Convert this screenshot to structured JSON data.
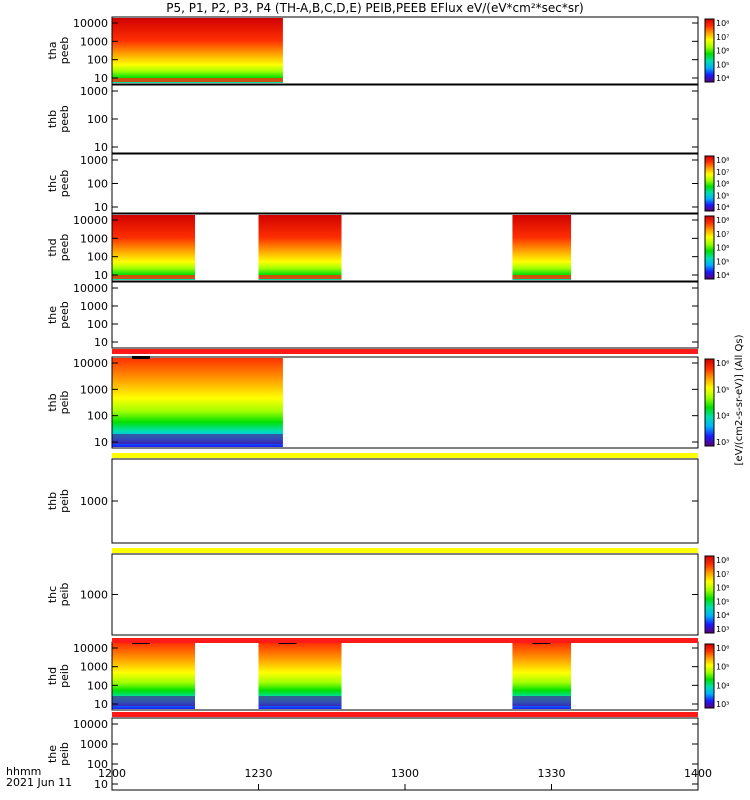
{
  "title": "P5, P1, P2, P3, P4 (TH-A,B,C,D,E) PEIB,PEEB EFlux eV/(eV*cm²*sec*sr)",
  "footer": {
    "time_label": "hhmm",
    "date_label": "2021 Jun 11"
  },
  "colors": {
    "spectrum": [
      "#5a007a",
      "#1a1aff",
      "#00b0ff",
      "#00e0b0",
      "#00e000",
      "#a0ff00",
      "#ffff00",
      "#ffa000",
      "#ff3000",
      "#d00000"
    ],
    "gap_bar": "#ff1a1a",
    "gap_bar_yellow": "#ffff00"
  },
  "chart_data": {
    "type": "heatmap",
    "x_axis": {
      "ticks": [
        "1200",
        "1230",
        "1300",
        "1330",
        "1400"
      ],
      "range": [
        "12:00",
        "14:00"
      ]
    },
    "panels": [
      {
        "probe": "tha",
        "instrument": "peeb",
        "yticks": [
          "10",
          "100",
          "1000",
          "10000"
        ],
        "data_intervals": [
          [
            "12:00",
            "12:35"
          ]
        ],
        "colorbar": [
          "10⁸",
          "10⁷",
          "10⁶",
          "10⁵",
          "10⁴"
        ],
        "colorbar_label": "[eV/(cm2-s-sr-eV)] (All Qs)"
      },
      {
        "probe": "thb",
        "instrument": "peeb",
        "yticks": [
          "10",
          "100",
          "1000"
        ],
        "data_intervals": []
      },
      {
        "probe": "thc",
        "instrument": "peeb",
        "yticks": [
          "10",
          "100",
          "1000"
        ],
        "data_intervals": [],
        "colorbar": [
          "10⁸",
          "10⁷",
          "10⁶",
          "10⁵",
          "10⁴"
        ]
      },
      {
        "probe": "thd",
        "instrument": "peeb",
        "yticks": [
          "10",
          "100",
          "1000",
          "10000"
        ],
        "data_intervals": [
          [
            "12:00",
            "12:17"
          ],
          [
            "12:30",
            "12:47"
          ],
          [
            "13:22",
            "13:34"
          ]
        ],
        "colorbar": [
          "10⁸",
          "10⁷",
          "10⁶",
          "10⁵",
          "10⁴"
        ]
      },
      {
        "probe": "the",
        "instrument": "peeb",
        "yticks": [
          "10",
          "100",
          "1000",
          "10000"
        ],
        "data_intervals": []
      },
      {
        "probe": "thb",
        "instrument": "peib",
        "yticks": [
          "10",
          "100",
          "1000",
          "10000"
        ],
        "data_intervals": [
          [
            "12:00",
            "12:35"
          ]
        ],
        "colorbar": [
          "10⁶",
          "10⁵",
          "10⁴",
          "10³"
        ]
      },
      {
        "probe": "thb",
        "instrument": "peib",
        "yticks": [
          "1000"
        ],
        "data_intervals": []
      },
      {
        "probe": "thc",
        "instrument": "peib",
        "yticks": [
          "1000"
        ],
        "data_intervals": [],
        "colorbar": [
          "10⁸",
          "10⁷",
          "10⁶",
          "10⁵",
          "10⁴",
          "10³"
        ]
      },
      {
        "probe": "thd",
        "instrument": "peib",
        "yticks": [
          "10",
          "100",
          "1000",
          "10000"
        ],
        "data_intervals": [
          [
            "12:00",
            "12:17"
          ],
          [
            "12:30",
            "12:47"
          ],
          [
            "13:22",
            "13:34"
          ]
        ],
        "colorbar": [
          "10⁶",
          "10⁵",
          "10⁴",
          "10³"
        ]
      },
      {
        "probe": "the",
        "instrument": "peib",
        "yticks": [
          "10",
          "100",
          "1000",
          "10000"
        ],
        "data_intervals": []
      }
    ],
    "colorbar_side_label": "[eV/(cm2-s-sr-eV)] (All Qs)"
  }
}
